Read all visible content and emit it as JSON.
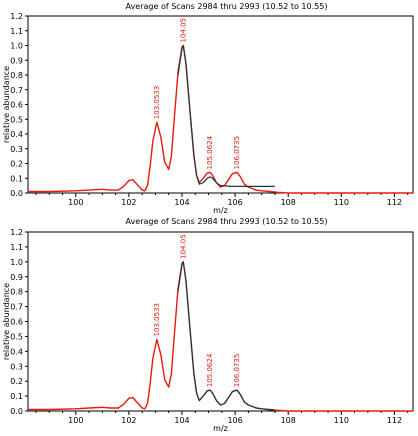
{
  "chart_data": [
    {
      "type": "line",
      "title": "Average of Scans 2984 thru 2993 (10.52 to 10.55)",
      "xlabel": "m/z",
      "ylabel": "relative abundance",
      "xlim": [
        98.2,
        112.7
      ],
      "ylim": [
        0,
        1.2
      ],
      "xticks": [
        100,
        102,
        104,
        106,
        108,
        110,
        112
      ],
      "yticks": [
        0.0,
        0.1,
        0.2,
        0.3,
        0.4,
        0.5,
        0.6,
        0.7,
        0.8,
        0.9,
        1.0,
        1.1,
        1.2
      ],
      "grid": false,
      "colors": {
        "measured": "#e8190e",
        "simulated": "#1c3a3a"
      },
      "peak_labels": [
        {
          "text": "103.0533",
          "x": 103.05,
          "y": 0.48
        },
        {
          "text": "104.05",
          "x": 104.05,
          "y": 1.0
        },
        {
          "text": "105.0624",
          "x": 105.06,
          "y": 0.14
        },
        {
          "text": "106.0735",
          "x": 106.07,
          "y": 0.14
        }
      ],
      "series": [
        {
          "x": [
            98.2,
            99.0,
            100.0,
            100.5,
            101.0,
            101.3,
            101.6,
            101.8,
            102.0,
            102.15,
            102.3,
            102.5,
            102.6,
            102.7,
            102.8,
            102.9,
            103.05,
            103.2,
            103.35,
            103.5,
            103.6,
            103.7,
            103.85,
            104.0,
            104.05,
            104.15,
            104.3,
            104.45,
            104.55,
            104.65,
            104.8,
            104.95,
            105.06,
            105.15,
            105.3,
            105.45,
            105.6,
            105.75,
            105.9,
            106.07,
            106.2,
            106.35,
            106.5,
            106.65,
            106.8,
            107.0,
            107.3,
            107.6,
            108.0,
            109.0,
            110.0,
            111.0,
            112.0,
            112.7
          ],
          "y": [
            0.01,
            0.01,
            0.015,
            0.02,
            0.025,
            0.02,
            0.02,
            0.045,
            0.085,
            0.09,
            0.06,
            0.02,
            0.015,
            0.05,
            0.18,
            0.35,
            0.48,
            0.38,
            0.21,
            0.16,
            0.25,
            0.48,
            0.82,
            0.99,
            1.0,
            0.87,
            0.55,
            0.25,
            0.12,
            0.07,
            0.1,
            0.135,
            0.14,
            0.12,
            0.07,
            0.04,
            0.05,
            0.09,
            0.13,
            0.14,
            0.11,
            0.06,
            0.04,
            0.03,
            0.02,
            0.015,
            0.01,
            0.005,
            0.0,
            0.0,
            0.0,
            0.0,
            0.0,
            0.0
          ]
        },
        {
          "x": [
            103.85,
            104.0,
            104.05,
            104.15,
            104.3,
            104.45,
            104.55,
            104.65,
            104.8,
            104.95,
            105.06,
            105.15,
            105.3,
            105.45,
            105.6,
            105.8,
            106.0,
            106.5,
            107.0,
            107.5
          ],
          "y": [
            0.8,
            0.98,
            1.0,
            0.88,
            0.56,
            0.26,
            0.12,
            0.06,
            0.07,
            0.1,
            0.11,
            0.1,
            0.07,
            0.05,
            0.05,
            0.045,
            0.045,
            0.045,
            0.045,
            0.045
          ]
        }
      ]
    },
    {
      "type": "line",
      "title": "Average of Scans 2984 thru 2993 (10.52 to 10.55)",
      "xlabel": "m/z",
      "ylabel": "relative abundance",
      "xlim": [
        98.2,
        112.7
      ],
      "ylim": [
        0,
        1.2
      ],
      "xticks": [
        100,
        102,
        104,
        106,
        108,
        110,
        112
      ],
      "yticks": [
        0.0,
        0.1,
        0.2,
        0.3,
        0.4,
        0.5,
        0.6,
        0.7,
        0.8,
        0.9,
        1.0,
        1.1,
        1.2
      ],
      "grid": false,
      "colors": {
        "measured": "#e8190e",
        "simulated": "#1c3a3a"
      },
      "peak_labels": [
        {
          "text": "103.0533",
          "x": 103.05,
          "y": 0.48
        },
        {
          "text": "104.05",
          "x": 104.05,
          "y": 1.0
        },
        {
          "text": "105.0624",
          "x": 105.06,
          "y": 0.14
        },
        {
          "text": "106.0735",
          "x": 106.07,
          "y": 0.14
        }
      ],
      "series": [
        {
          "x": [
            98.2,
            99.0,
            100.0,
            100.5,
            101.0,
            101.3,
            101.6,
            101.8,
            102.0,
            102.15,
            102.3,
            102.5,
            102.6,
            102.7,
            102.8,
            102.9,
            103.05,
            103.2,
            103.35,
            103.5,
            103.6,
            103.7,
            103.85,
            104.0,
            104.05,
            104.15,
            104.3,
            104.45,
            104.55,
            104.65,
            104.8,
            104.95,
            105.06,
            105.15,
            105.3,
            105.45,
            105.6,
            105.75,
            105.9,
            106.07,
            106.2,
            106.35,
            106.5,
            106.65,
            106.8,
            107.0,
            107.3,
            107.6,
            108.0,
            109.0,
            110.0,
            111.0,
            112.0,
            112.7
          ],
          "y": [
            0.01,
            0.01,
            0.015,
            0.02,
            0.025,
            0.02,
            0.02,
            0.045,
            0.085,
            0.09,
            0.06,
            0.02,
            0.015,
            0.05,
            0.18,
            0.35,
            0.48,
            0.38,
            0.21,
            0.16,
            0.25,
            0.48,
            0.82,
            0.99,
            1.0,
            0.87,
            0.55,
            0.25,
            0.12,
            0.07,
            0.1,
            0.135,
            0.14,
            0.12,
            0.07,
            0.04,
            0.05,
            0.09,
            0.13,
            0.14,
            0.11,
            0.06,
            0.04,
            0.03,
            0.02,
            0.015,
            0.01,
            0.005,
            0.0,
            0.0,
            0.0,
            0.0,
            0.0,
            0.0
          ]
        },
        {
          "x": [
            103.85,
            104.0,
            104.05,
            104.15,
            104.3,
            104.45,
            104.55,
            104.65,
            104.8,
            104.95,
            105.06,
            105.15,
            105.3,
            105.45,
            105.6,
            105.75,
            105.9,
            106.07,
            106.2,
            106.35,
            106.5,
            106.65,
            106.8,
            107.0,
            107.2,
            107.5
          ],
          "y": [
            0.8,
            0.98,
            1.0,
            0.87,
            0.55,
            0.25,
            0.12,
            0.07,
            0.1,
            0.135,
            0.14,
            0.12,
            0.07,
            0.04,
            0.05,
            0.09,
            0.13,
            0.14,
            0.11,
            0.06,
            0.04,
            0.03,
            0.02,
            0.015,
            0.01,
            0.005
          ]
        }
      ]
    }
  ]
}
